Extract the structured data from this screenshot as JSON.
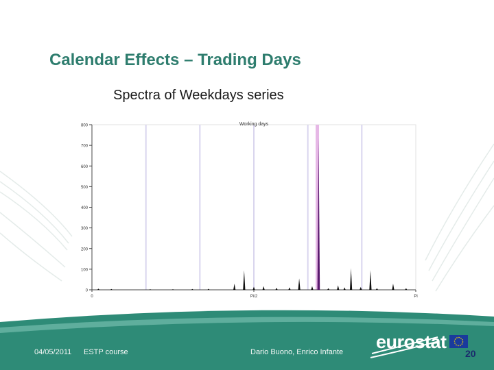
{
  "slide": {
    "title": "Calendar Effects – Trading Days",
    "subtitle": "Spectra of Weekdays series",
    "page_number": "20"
  },
  "footer": {
    "date": "04/05/2011",
    "course": "ESTP course",
    "authors": "Dario Buono, Enrico Infante",
    "logo_text": "eurostat"
  },
  "colors": {
    "title": "#2e7d6e",
    "footer_band": "#2e8b77",
    "spectrum": "#111111",
    "band_lines": "#d9d5ee",
    "td_band": "#e6b8e6",
    "td_peak": "#5a1a6e"
  },
  "chart_data": {
    "type": "line",
    "title": "Working days",
    "ylim": [
      0,
      800
    ],
    "xlim": [
      0,
      1
    ],
    "y_ticks": [
      "0",
      "100",
      "200",
      "300",
      "400",
      "500",
      "600",
      "700",
      "800"
    ],
    "x_tick_labels": [
      {
        "value": 0,
        "label": "0"
      },
      {
        "value": 0.5,
        "label": "Pi/2"
      },
      {
        "value": 1,
        "label": "Pi"
      }
    ],
    "seasonal_bands": [
      0.1667,
      0.3333,
      0.5,
      0.6667,
      0.8333
    ],
    "trading_day_band": 0.696,
    "peaks": [
      {
        "x": 0.02,
        "y": 6
      },
      {
        "x": 0.06,
        "y": 4
      },
      {
        "x": 0.18,
        "y": 3
      },
      {
        "x": 0.25,
        "y": 3
      },
      {
        "x": 0.31,
        "y": 4
      },
      {
        "x": 0.36,
        "y": 5
      },
      {
        "x": 0.44,
        "y": 30
      },
      {
        "x": 0.47,
        "y": 95
      },
      {
        "x": 0.5,
        "y": 15
      },
      {
        "x": 0.53,
        "y": 18
      },
      {
        "x": 0.57,
        "y": 10
      },
      {
        "x": 0.61,
        "y": 12
      },
      {
        "x": 0.64,
        "y": 55
      },
      {
        "x": 0.68,
        "y": 18
      },
      {
        "x": 0.7,
        "y": 735
      },
      {
        "x": 0.73,
        "y": 8
      },
      {
        "x": 0.76,
        "y": 22
      },
      {
        "x": 0.78,
        "y": 12
      },
      {
        "x": 0.8,
        "y": 105
      },
      {
        "x": 0.83,
        "y": 14
      },
      {
        "x": 0.86,
        "y": 95
      },
      {
        "x": 0.88,
        "y": 8
      },
      {
        "x": 0.93,
        "y": 30
      },
      {
        "x": 0.97,
        "y": 8
      }
    ]
  }
}
